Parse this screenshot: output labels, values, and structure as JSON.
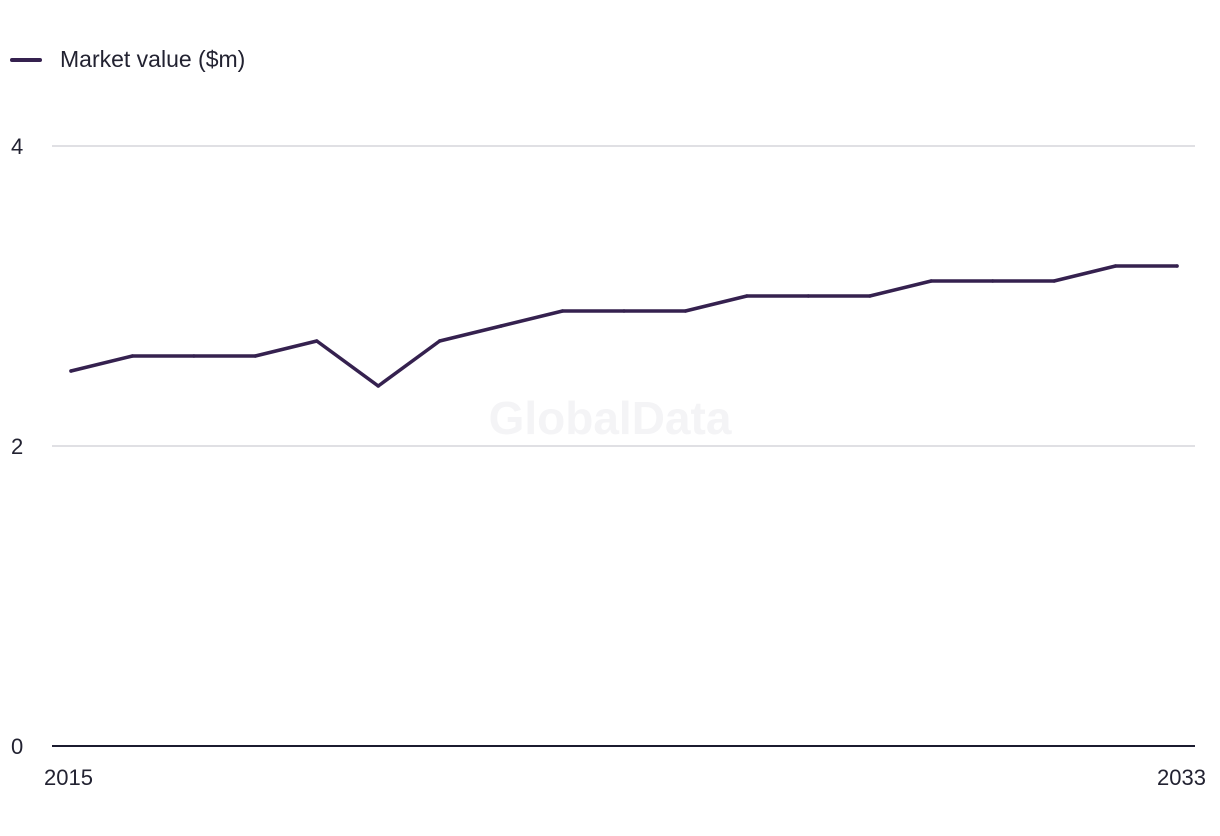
{
  "chart_data": {
    "type": "line",
    "x": [
      2015,
      2016,
      2017,
      2018,
      2019,
      2020,
      2021,
      2022,
      2023,
      2024,
      2025,
      2026,
      2027,
      2028,
      2029,
      2030,
      2031,
      2032,
      2033
    ],
    "series": [
      {
        "name": "Market value ($m)",
        "values": [
          2.5,
          2.6,
          2.6,
          2.6,
          2.7,
          2.4,
          2.7,
          2.8,
          2.9,
          2.9,
          2.9,
          3.0,
          3.0,
          3.0,
          3.1,
          3.1,
          3.1,
          3.2,
          3.2
        ],
        "color": "#35214f"
      }
    ],
    "xlim": [
      2015,
      2033
    ],
    "ylim": [
      0,
      4
    ],
    "yticks": [
      "0",
      "2",
      "4"
    ],
    "xticks": [
      "2015",
      "2033"
    ],
    "grid": true,
    "legend": "top-left",
    "watermark": "GlobalData"
  }
}
